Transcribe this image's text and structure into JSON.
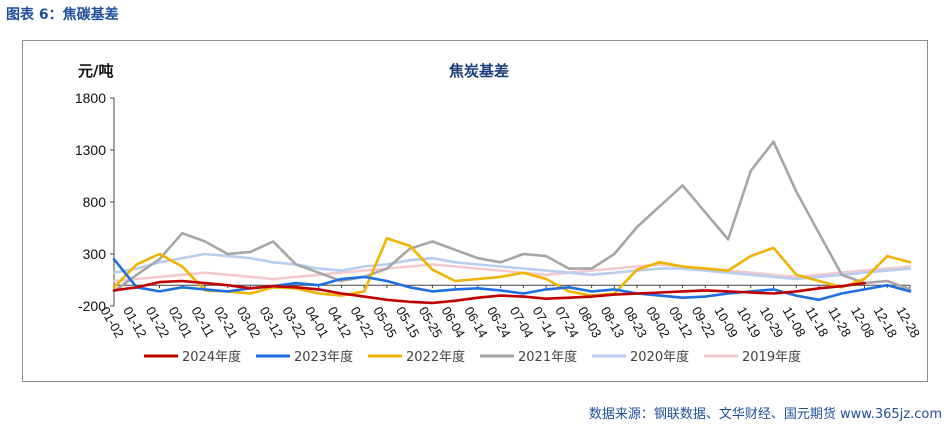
{
  "caption": "图表 6：焦碳基差",
  "source": "数据来源：钢联数据、文华财经、国元期货 www.365jz.com",
  "colors": {
    "s2024": "#c00000",
    "s2023": "#1f6fe0",
    "s2022": "#f0b400",
    "s2021": "#a6a6a6",
    "s2020": "#b8cdf0",
    "s2019": "#f2c9cf",
    "title": "#1f3f7a",
    "axis": "#444444"
  },
  "chart_data": {
    "type": "line",
    "title": "焦炭基差",
    "ylabel": "元/吨",
    "xlabel": "",
    "ylim": [
      -200,
      1800
    ],
    "yticks": [
      -200,
      300,
      800,
      1300,
      1800
    ],
    "legend_position": "bottom",
    "x": [
      "01-02",
      "01-12",
      "01-22",
      "02-01",
      "02-11",
      "02-21",
      "03-02",
      "03-12",
      "03-22",
      "04-01",
      "04-12",
      "04-22",
      "05-05",
      "05-15",
      "05-25",
      "06-04",
      "06-14",
      "06-24",
      "07-04",
      "07-14",
      "07-24",
      "08-03",
      "08-13",
      "08-23",
      "09-02",
      "09-12",
      "09-22",
      "10-09",
      "10-19",
      "10-29",
      "11-08",
      "11-18",
      "11-28",
      "12-08",
      "12-18",
      "12-28"
    ],
    "series": [
      {
        "name": "2024年度",
        "color_key": "s2024",
        "values": [
          -50,
          -20,
          30,
          40,
          20,
          0,
          -30,
          -10,
          -20,
          -40,
          -80,
          -110,
          -140,
          -160,
          -170,
          -150,
          -120,
          -100,
          -110,
          -130,
          -120,
          -110,
          -90,
          -80,
          -70,
          -60,
          -50,
          -60,
          -70,
          -80,
          -60,
          -30,
          -10,
          20,
          null,
          null
        ]
      },
      {
        "name": "2023年度",
        "color_key": "s2023",
        "values": [
          250,
          -20,
          -60,
          -20,
          -40,
          -60,
          -30,
          -10,
          20,
          0,
          60,
          80,
          40,
          -20,
          -60,
          -40,
          -30,
          -50,
          -80,
          -40,
          -20,
          -60,
          -40,
          -80,
          -100,
          -120,
          -110,
          -80,
          -60,
          -40,
          -100,
          -140,
          -80,
          -40,
          0,
          -60
        ]
      },
      {
        "name": "2022年度",
        "color_key": "s2022",
        "values": [
          -20,
          200,
          300,
          180,
          -50,
          -60,
          -80,
          -20,
          -30,
          -80,
          -100,
          -60,
          450,
          380,
          150,
          40,
          60,
          80,
          120,
          60,
          -60,
          -100,
          -80,
          150,
          220,
          180,
          160,
          140,
          280,
          360,
          100,
          40,
          -20,
          60,
          280,
          220
        ]
      },
      {
        "name": "2021年度",
        "color_key": "s2021",
        "values": [
          -60,
          100,
          250,
          500,
          420,
          300,
          320,
          420,
          200,
          120,
          40,
          80,
          160,
          350,
          420,
          340,
          260,
          220,
          300,
          280,
          160,
          160,
          300,
          560,
          760,
          960,
          700,
          440,
          1100,
          1380,
          900,
          500,
          100,
          20,
          40,
          -40
        ]
      },
      {
        "name": "2020年度",
        "color_key": "s2020",
        "values": [
          120,
          160,
          220,
          260,
          300,
          280,
          260,
          220,
          200,
          160,
          140,
          180,
          200,
          240,
          260,
          220,
          200,
          180,
          160,
          140,
          120,
          100,
          120,
          140,
          160,
          160,
          140,
          120,
          100,
          80,
          60,
          80,
          100,
          120,
          140,
          160
        ]
      },
      {
        "name": "2019年度",
        "color_key": "s2019",
        "values": [
          40,
          60,
          80,
          100,
          120,
          100,
          80,
          60,
          80,
          100,
          120,
          140,
          160,
          180,
          200,
          180,
          160,
          140,
          120,
          100,
          120,
          140,
          160,
          180,
          200,
          180,
          160,
          140,
          120,
          100,
          80,
          100,
          120,
          140,
          160,
          180
        ]
      }
    ]
  }
}
